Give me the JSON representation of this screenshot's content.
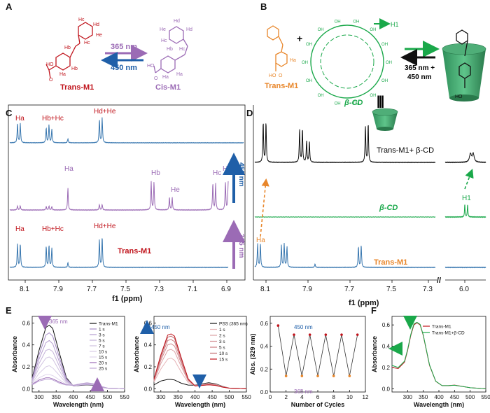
{
  "panels": {
    "A": {
      "label": "A",
      "trans_name": "Trans-M1",
      "cis_name": "Cis-M1",
      "forward_light": "365 nm",
      "reverse_light": "450 nm",
      "trans_atoms": [
        "Hc",
        "Hd",
        "He",
        "Hb",
        "Hc",
        "Hb",
        "Ha",
        "Ha",
        "HO",
        "O"
      ],
      "cis_atoms": [
        "Hd",
        "He",
        "Hd",
        "Hc",
        "Hb",
        "Hc",
        "Ha",
        "Ha",
        "HO",
        "O"
      ],
      "colors": {
        "trans": "#c0141c",
        "cis": "#9b6bb5",
        "uv": "#9b6bb5",
        "vis": "#1f5fa8"
      }
    },
    "B": {
      "label": "B",
      "trans_name": "Trans-M1",
      "cd_name": "β-CD",
      "proton_label": "H1",
      "plus": "+",
      "light_label_1": "365 nm +",
      "light_label_2": "450 nm",
      "ha_label": "Ha",
      "hydroxyl": "OH",
      "acid_labels": [
        "HO",
        "O"
      ],
      "equiv_symbol": "|||"
    },
    "C": {
      "label": "C",
      "xlabel": "f1 (ppm)",
      "ticks": [
        "8.1",
        "7.9",
        "7.7",
        "7.5",
        "7.3",
        "7.1",
        "6.9"
      ],
      "top_labels": [
        "Ha",
        "Hb+Hc",
        "Hd+He"
      ],
      "mid_labels": [
        "Ha",
        "Hb",
        "He",
        "Hc",
        "Hd"
      ],
      "bottom_labels": [
        "Ha",
        "Hb+Hc",
        "Hd+He"
      ],
      "bottom_name": "Trans-M1",
      "arrow_450": "450 nm",
      "arrow_365": "365 nm"
    },
    "D": {
      "label": "D",
      "xlabel": "f1 (ppm)",
      "ticks": [
        "8.1",
        "7.9",
        "7.7",
        "7.5",
        "7.3",
        "6.0"
      ],
      "top_name": "Trans-M1+ β-CD",
      "mid_name": "β-CD",
      "bottom_name": "Trans-M1",
      "ha_label": "Ha",
      "h1_label": "H1",
      "break": "//"
    },
    "E1": {
      "label": "E",
      "ylabel": "Absorbance",
      "xlabel": "Wavelength (nm)",
      "xticks": [
        "300",
        "350",
        "400",
        "450",
        "500",
        "550"
      ],
      "yticks": [
        "0.0",
        "0.2",
        "0.4",
        "0.6"
      ],
      "annotation": "365 nm",
      "legend": [
        "Trans-M1",
        "1 s",
        "3 s",
        "5 s",
        "7 s",
        "10 s",
        "15 s",
        "20 s",
        "25 s"
      ]
    },
    "E2": {
      "ylabel": "Absorbance",
      "xlabel": "Wavelength (nm)",
      "xticks": [
        "300",
        "350",
        "400",
        "450",
        "500",
        "550"
      ],
      "yticks": [
        "0.0",
        "0.2",
        "0.4",
        "0.6"
      ],
      "annotation": "450 nm",
      "legend": [
        "PSS (365 nm)",
        "1 s",
        "2 s",
        "3 s",
        "5 s",
        "10 s",
        "15 s"
      ]
    },
    "E3": {
      "ylabel": "Abs. (329 nm)",
      "xlabel": "Number of Cycles",
      "xticks": [
        "0",
        "2",
        "4",
        "6",
        "8",
        "10",
        "12"
      ],
      "yticks": [
        "0.0",
        "0.2",
        "0.4",
        "0.6"
      ],
      "label_450": "450 nm",
      "label_365": "365 nm"
    },
    "F": {
      "label": "F",
      "ylabel": "Absorbance",
      "xlabel": "Wavelength (nm)",
      "xticks": [
        "300",
        "350",
        "400",
        "450",
        "500",
        "550"
      ],
      "yticks": [
        "0.0",
        "0.2",
        "0.4",
        "0.6"
      ],
      "legend": [
        "Trans-M1",
        "Trans-M1+β-CD"
      ]
    }
  },
  "chart_data": [
    {
      "type": "line",
      "panel": "E1",
      "xlabel": "Wavelength (nm)",
      "ylabel": "Absorbance",
      "xlim": [
        280,
        550
      ],
      "ylim": [
        -0.03,
        0.66
      ],
      "x": [
        280,
        300,
        320,
        330,
        340,
        360,
        380,
        400,
        420,
        440,
        460,
        480,
        500,
        550
      ],
      "series": [
        {
          "name": "Trans-M1",
          "values": [
            0.1,
            0.35,
            0.56,
            0.58,
            0.55,
            0.32,
            0.1,
            0.025,
            0.03,
            0.035,
            0.03,
            0.015,
            0.005,
            0.0
          ]
        },
        {
          "name": "1 s",
          "values": [
            0.09,
            0.31,
            0.49,
            0.51,
            0.48,
            0.28,
            0.09,
            0.025,
            0.032,
            0.038,
            0.032,
            0.016,
            0.005,
            0.0
          ]
        },
        {
          "name": "3 s",
          "values": [
            0.08,
            0.27,
            0.42,
            0.44,
            0.41,
            0.24,
            0.08,
            0.026,
            0.034,
            0.04,
            0.034,
            0.017,
            0.005,
            0.0
          ]
        },
        {
          "name": "5 s",
          "values": [
            0.07,
            0.23,
            0.35,
            0.36,
            0.34,
            0.2,
            0.07,
            0.027,
            0.036,
            0.043,
            0.036,
            0.018,
            0.005,
            0.0
          ]
        },
        {
          "name": "7 s",
          "values": [
            0.06,
            0.19,
            0.28,
            0.29,
            0.27,
            0.16,
            0.06,
            0.028,
            0.038,
            0.046,
            0.038,
            0.019,
            0.005,
            0.0
          ]
        },
        {
          "name": "10 s",
          "values": [
            0.05,
            0.14,
            0.2,
            0.21,
            0.19,
            0.12,
            0.05,
            0.029,
            0.04,
            0.049,
            0.04,
            0.02,
            0.005,
            0.0
          ]
        },
        {
          "name": "15 s",
          "values": [
            0.045,
            0.1,
            0.13,
            0.13,
            0.12,
            0.08,
            0.04,
            0.03,
            0.042,
            0.051,
            0.042,
            0.021,
            0.005,
            0.0
          ]
        },
        {
          "name": "20 s",
          "values": [
            0.04,
            0.08,
            0.1,
            0.1,
            0.09,
            0.06,
            0.035,
            0.031,
            0.043,
            0.053,
            0.043,
            0.022,
            0.005,
            0.0
          ]
        },
        {
          "name": "25 s",
          "values": [
            0.035,
            0.07,
            0.085,
            0.085,
            0.08,
            0.05,
            0.033,
            0.032,
            0.044,
            0.055,
            0.044,
            0.022,
            0.005,
            0.0
          ]
        }
      ]
    },
    {
      "type": "line",
      "panel": "E2",
      "xlabel": "Wavelength (nm)",
      "ylabel": "Absorbance",
      "xlim": [
        280,
        550
      ],
      "ylim": [
        -0.03,
        0.66
      ],
      "x": [
        280,
        300,
        320,
        330,
        340,
        360,
        380,
        400,
        420,
        440,
        460,
        480,
        500,
        550
      ],
      "series": [
        {
          "name": "PSS (365 nm)",
          "values": [
            0.035,
            0.07,
            0.085,
            0.085,
            0.08,
            0.05,
            0.033,
            0.032,
            0.044,
            0.055,
            0.044,
            0.022,
            0.005,
            0.0
          ]
        },
        {
          "name": "1 s",
          "values": [
            0.06,
            0.18,
            0.27,
            0.28,
            0.26,
            0.15,
            0.055,
            0.03,
            0.04,
            0.048,
            0.04,
            0.02,
            0.005,
            0.0
          ]
        },
        {
          "name": "2 s",
          "values": [
            0.07,
            0.23,
            0.35,
            0.36,
            0.34,
            0.2,
            0.07,
            0.028,
            0.037,
            0.043,
            0.037,
            0.018,
            0.005,
            0.0
          ]
        },
        {
          "name": "3 s",
          "values": [
            0.075,
            0.26,
            0.4,
            0.41,
            0.39,
            0.23,
            0.075,
            0.027,
            0.035,
            0.04,
            0.035,
            0.017,
            0.005,
            0.0
          ]
        },
        {
          "name": "5 s",
          "values": [
            0.08,
            0.28,
            0.44,
            0.45,
            0.43,
            0.25,
            0.08,
            0.026,
            0.033,
            0.038,
            0.033,
            0.016,
            0.005,
            0.0
          ]
        },
        {
          "name": "10 s",
          "values": [
            0.085,
            0.3,
            0.47,
            0.48,
            0.46,
            0.27,
            0.085,
            0.025,
            0.031,
            0.036,
            0.031,
            0.015,
            0.005,
            0.0
          ]
        },
        {
          "name": "15 s",
          "values": [
            0.09,
            0.31,
            0.49,
            0.5,
            0.48,
            0.28,
            0.09,
            0.025,
            0.03,
            0.035,
            0.03,
            0.015,
            0.005,
            0.0
          ]
        }
      ]
    },
    {
      "type": "line",
      "panel": "E3",
      "xlabel": "Number of Cycles",
      "ylabel": "Abs. (329 nm)",
      "xlim": [
        0,
        12
      ],
      "ylim": [
        0.0,
        0.66
      ],
      "x": [
        1,
        2,
        3,
        4,
        5,
        6,
        7,
        8,
        9,
        10,
        11
      ],
      "series": [
        {
          "name": "",
          "values": [
            0.58,
            0.14,
            0.5,
            0.14,
            0.5,
            0.14,
            0.5,
            0.14,
            0.5,
            0.14,
            0.5
          ]
        }
      ]
    },
    {
      "type": "line",
      "panel": "F",
      "xlabel": "Wavelength (nm)",
      "ylabel": "Absorbance",
      "xlim": [
        250,
        550
      ],
      "ylim": [
        -0.03,
        0.68
      ],
      "x": [
        250,
        270,
        290,
        300,
        310,
        320,
        330,
        340,
        350,
        370,
        390,
        410,
        430,
        450,
        470,
        500,
        550
      ],
      "series": [
        {
          "name": "Trans-M1",
          "values": [
            0.2,
            0.19,
            0.25,
            0.36,
            0.5,
            0.6,
            0.62,
            0.6,
            0.5,
            0.22,
            0.07,
            0.03,
            0.03,
            0.035,
            0.025,
            0.01,
            0.0
          ]
        },
        {
          "name": "Trans-M1+β-CD",
          "values": [
            0.22,
            0.2,
            0.26,
            0.37,
            0.51,
            0.61,
            0.625,
            0.605,
            0.505,
            0.225,
            0.072,
            0.03,
            0.03,
            0.033,
            0.024,
            0.01,
            0.0
          ]
        }
      ]
    }
  ]
}
